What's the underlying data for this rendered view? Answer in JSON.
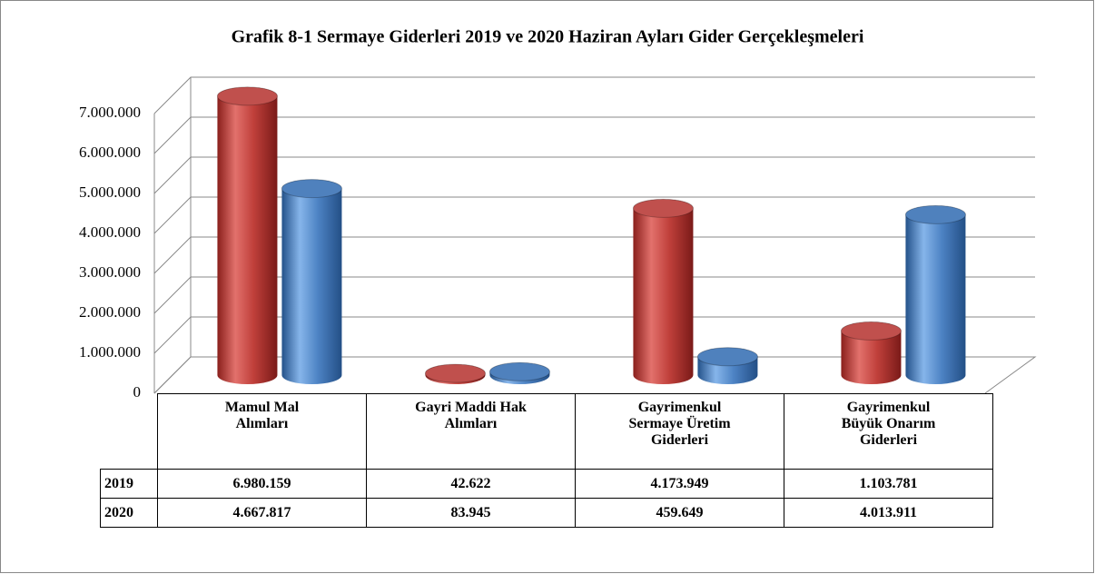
{
  "chart_data": {
    "type": "bar3d",
    "title": "Grafik 8-1 Sermaye Giderleri 2019 ve 2020 Haziran Ayları Gider Gerçekleşmeleri",
    "categories": [
      "Mamul Mal Alımları",
      "Gayri Maddi Hak Alımları",
      "Gayrimenkul Sermaye Üretim Giderleri",
      "Gayrimenkul Büyük Onarım Giderleri"
    ],
    "series": [
      {
        "name": "2019",
        "color": "#c0504d",
        "values": [
          6980159,
          42622,
          4173949,
          1103781
        ],
        "value_labels": [
          "6.980.159",
          "42.622",
          "4.173.949",
          "1.103.781"
        ]
      },
      {
        "name": "2020",
        "color": "#4f81bd",
        "values": [
          4667817,
          83945,
          459649,
          4013911
        ],
        "value_labels": [
          "4.667.817",
          "83.945",
          "459.649",
          "4.013.911"
        ]
      }
    ],
    "ylim": [
      0,
      7000000
    ],
    "yticks": [
      0,
      {
        "value": 1000000,
        "label": "1.000.000"
      },
      {
        "value": 2000000,
        "label": "2.000.000"
      },
      {
        "value": 3000000,
        "label": "3.000.000"
      },
      {
        "value": 4000000,
        "label": "4.000.000"
      },
      {
        "value": 5000000,
        "label": "5.000.000"
      },
      {
        "value": 6000000,
        "label": "6.000.000"
      },
      {
        "value": 7000000,
        "label": "7.000.000"
      }
    ],
    "grid": true
  }
}
